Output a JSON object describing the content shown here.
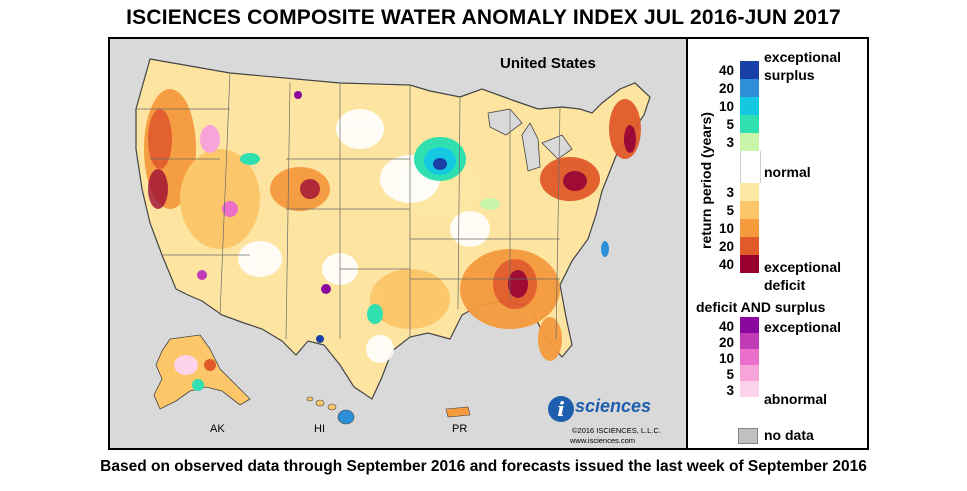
{
  "title": "ISCIENCES COMPOSITE WATER ANOMALY INDEX JUL 2016-JUN 2017",
  "footer": "Based on observed data through September 2016 and forecasts issued the last week of September 2016",
  "map": {
    "region_label": "United States",
    "insets": {
      "ak": "AK",
      "hi": "HI",
      "pr": "PR"
    },
    "logo": {
      "mark": "i",
      "word": "sciences",
      "copyright": "©2016 ISCIENCES, L.L.C.",
      "url": "www.isciences.com"
    },
    "colors": {
      "background": "#d9d9d9",
      "land": "#ffffff",
      "state_border": "#5a5a5a",
      "surplus": [
        "#c8f5a9",
        "#30e0b0",
        "#13c8e0",
        "#2c8fd8",
        "#1840a8"
      ],
      "deficit": [
        "#fde9a4",
        "#fcc669",
        "#f59a3d",
        "#e25a2a",
        "#990030"
      ],
      "both": [
        "#fcd3ea",
        "#f7a5d8",
        "#ec6ecb",
        "#c23bb6",
        "#8b089f"
      ]
    }
  },
  "legend": {
    "axis_label": "return period (years)",
    "surplus": {
      "label_top": "exceptional",
      "label_bottom": "surplus",
      "ticks": [
        "40",
        "20",
        "10",
        "5",
        "3"
      ],
      "colors": [
        "#1840a8",
        "#2c8fd8",
        "#13c8e0",
        "#30e0b0",
        "#c8f5a9"
      ]
    },
    "normal_label": "normal",
    "deficit": {
      "ticks": [
        "3",
        "5",
        "10",
        "20",
        "40"
      ],
      "colors": [
        "#fde9a4",
        "#fcc669",
        "#f59a3d",
        "#e25a2a",
        "#990030"
      ],
      "label_top": "exceptional",
      "label_bottom": "deficit"
    },
    "both": {
      "heading": "deficit AND surplus",
      "ticks": [
        "40",
        "20",
        "10",
        "5",
        "3"
      ],
      "colors": [
        "#8b089f",
        "#c23bb6",
        "#ec6ecb",
        "#f7a5d8",
        "#fcd3ea"
      ],
      "label_top": "exceptional",
      "label_bottom": "abnormal"
    },
    "no_data": {
      "label": "no data",
      "color": "#c0c0c0"
    }
  }
}
